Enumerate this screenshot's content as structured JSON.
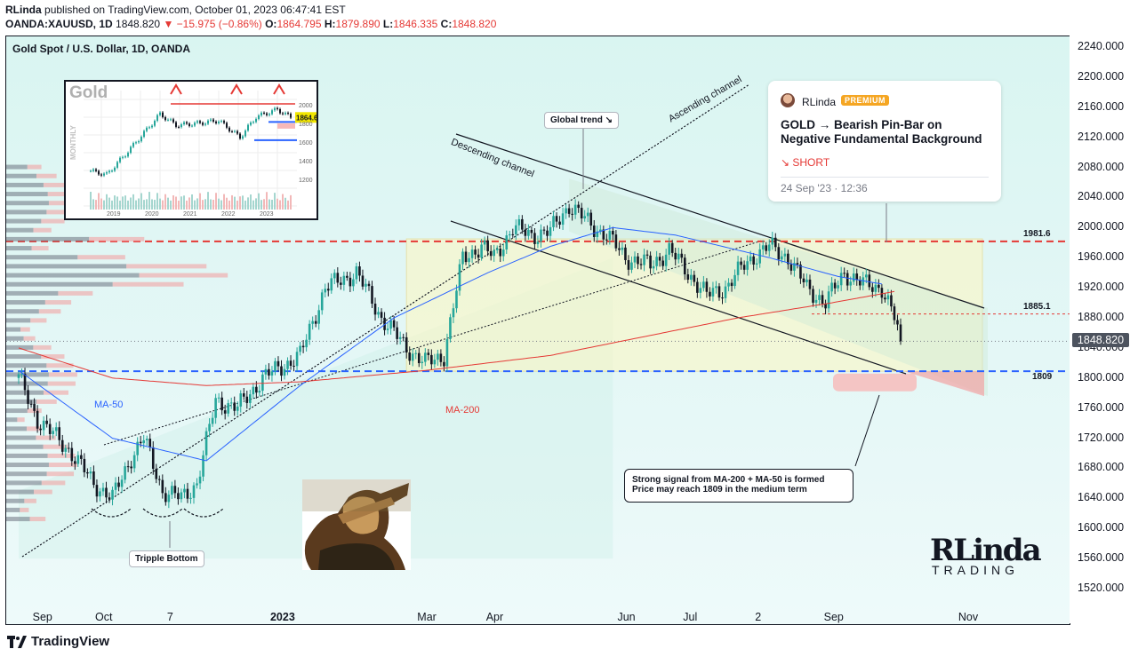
{
  "header": {
    "author": "RLinda",
    "published": "published on TradingView.com, October 01, 2023 06:47:41 EST"
  },
  "ohlc": {
    "symbol": "OANDA:XAUUSD, 1D",
    "last": "1848.820",
    "change": "−15.975 (−0.86%)",
    "o_label": "O:",
    "o": "1864.795",
    "h_label": "H:",
    "h": "1879.890",
    "l_label": "L:",
    "l": "1846.335",
    "c_label": "C:",
    "c": "1848.820"
  },
  "chart_title": "Gold Spot / U.S. Dollar, 1D, OANDA",
  "price_tag": "1848.820",
  "footer": {
    "brand": "TradingView"
  },
  "inset": {
    "title": "Gold",
    "side_label": "MONTHLY",
    "price_tag": "1864.6",
    "y_labels": [
      "2000",
      "1800",
      "1600",
      "1400",
      "1200"
    ],
    "x_labels": [
      "2019",
      "2020",
      "2021",
      "2022",
      "2023"
    ]
  },
  "idea_card": {
    "author": "RLinda",
    "badge": "PREMIUM",
    "headline": "GOLD → Bearish Pin-Bar on Negative Fundamental Background",
    "direction": "SHORT",
    "date": "24 Sep '23 · 12:36"
  },
  "annotations": {
    "global_trend": "Global trend ↘",
    "descending_channel": "Descending channel",
    "ascending_channel": "Ascending channel",
    "ma50": "MA-50",
    "ma200": "MA-200",
    "triple_bottom": "Tripple Bottom",
    "level_1981": "1981.6",
    "level_1885": "1885.1",
    "level_1809": "1809",
    "note_line1": "Strong signal from MA-200 + MA-50 is formed",
    "note_line2": "Price may reach 1809 in the medium term",
    "logo_big": "RLinda",
    "logo_small": "TRADING"
  },
  "colors": {
    "bull": "#26a69a",
    "bear": "#131722",
    "ma50": "#2962ff",
    "ma200": "#e53935",
    "level_red": "#e53935",
    "level_blue": "#2962ff"
  },
  "chart_data": {
    "type": "candlestick",
    "title": "Gold Spot / U.S. Dollar, 1D, OANDA",
    "y_ticks": [
      2240,
      2200,
      2160,
      2120,
      2080,
      2040,
      2000,
      1960,
      1920,
      1880,
      1840,
      1800,
      1760,
      1720,
      1680,
      1640,
      1600,
      1560,
      1520
    ],
    "y_tick_labels": [
      "2240.000",
      "2200.000",
      "2160.000",
      "2120.000",
      "2080.000",
      "2040.000",
      "2000.000",
      "1960.000",
      "1920.000",
      "1880.000",
      "1840.000",
      "1800.000",
      "1760.000",
      "1720.000",
      "1680.000",
      "1640.000",
      "1600.000",
      "1560.000",
      "1520.000"
    ],
    "ylim": [
      1500,
      2260
    ],
    "x_ticks": [
      {
        "label": "Sep",
        "bold": false,
        "i": 7
      },
      {
        "label": "Oct",
        "bold": false,
        "i": 27
      },
      {
        "label": "7",
        "bold": false,
        "i": 50
      },
      {
        "label": "2023",
        "bold": true,
        "i": 83
      },
      {
        "label": "Mar",
        "bold": false,
        "i": 130
      },
      {
        "label": "Apr",
        "bold": false,
        "i": 152
      },
      {
        "label": "Jun",
        "bold": false,
        "i": 194
      },
      {
        "label": "Jul",
        "bold": false,
        "i": 215
      },
      {
        "label": "2",
        "bold": false,
        "i": 238
      },
      {
        "label": "Sep",
        "bold": false,
        "i": 260
      },
      {
        "label": "Nov",
        "bold": false,
        "i": 303
      }
    ],
    "close_anchors": [
      [
        0,
        1800
      ],
      [
        6,
        1745
      ],
      [
        16,
        1705
      ],
      [
        24,
        1660
      ],
      [
        30,
        1640
      ],
      [
        36,
        1695
      ],
      [
        40,
        1720
      ],
      [
        46,
        1650
      ],
      [
        52,
        1640
      ],
      [
        57,
        1660
      ],
      [
        63,
        1770
      ],
      [
        70,
        1760
      ],
      [
        78,
        1800
      ],
      [
        90,
        1830
      ],
      [
        98,
        1920
      ],
      [
        108,
        1940
      ],
      [
        116,
        1880
      ],
      [
        124,
        1840
      ],
      [
        130,
        1820
      ],
      [
        136,
        1830
      ],
      [
        142,
        1960
      ],
      [
        148,
        1975
      ],
      [
        152,
        1960
      ],
      [
        158,
        2000
      ],
      [
        164,
        1990
      ],
      [
        170,
        1995
      ],
      [
        176,
        2030
      ],
      [
        180,
        2015
      ],
      [
        184,
        2000
      ],
      [
        188,
        1990
      ],
      [
        194,
        1960
      ],
      [
        202,
        1950
      ],
      [
        208,
        1970
      ],
      [
        214,
        1940
      ],
      [
        220,
        1910
      ],
      [
        226,
        1920
      ],
      [
        232,
        1950
      ],
      [
        236,
        1965
      ],
      [
        240,
        1975
      ],
      [
        246,
        1960
      ],
      [
        252,
        1920
      ],
      [
        258,
        1900
      ],
      [
        264,
        1940
      ],
      [
        270,
        1925
      ],
      [
        276,
        1920
      ],
      [
        280,
        1880
      ],
      [
        282,
        1848.82
      ]
    ],
    "ma50_anchors": [
      [
        0,
        1810
      ],
      [
        30,
        1720
      ],
      [
        60,
        1690
      ],
      [
        90,
        1790
      ],
      [
        120,
        1880
      ],
      [
        150,
        1940
      ],
      [
        170,
        1975
      ],
      [
        190,
        2000
      ],
      [
        210,
        1990
      ],
      [
        240,
        1960
      ],
      [
        262,
        1935
      ],
      [
        276,
        1925
      ]
    ],
    "ma200_anchors": [
      [
        0,
        1840
      ],
      [
        30,
        1800
      ],
      [
        60,
        1790
      ],
      [
        90,
        1795
      ],
      [
        130,
        1810
      ],
      [
        170,
        1830
      ],
      [
        200,
        1855
      ],
      [
        230,
        1880
      ],
      [
        260,
        1900
      ],
      [
        280,
        1915
      ]
    ],
    "levels": [
      {
        "value": 1981.6,
        "color": "red",
        "style": "dashed"
      },
      {
        "value": 1885.1,
        "color": "red",
        "style": "dotted"
      },
      {
        "value": 1809,
        "color": "blue",
        "style": "dashed"
      }
    ]
  }
}
